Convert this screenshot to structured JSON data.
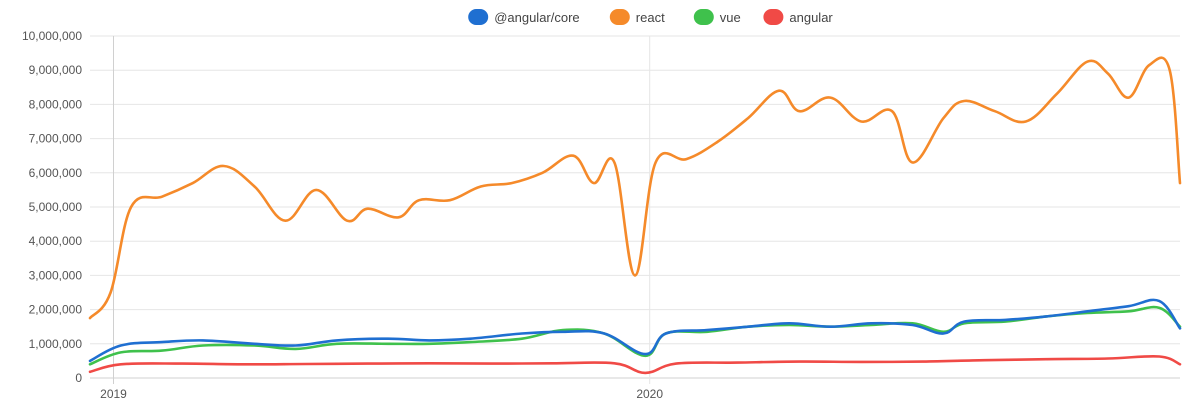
{
  "chart_data": {
    "type": "line",
    "title": "",
    "xlabel": "",
    "ylabel": "",
    "x_range": [
      "2018-12-16",
      "2020-12-27"
    ],
    "ylim": [
      0,
      10000000
    ],
    "yticks": [
      0,
      1000000,
      2000000,
      3000000,
      4000000,
      5000000,
      6000000,
      7000000,
      8000000,
      9000000,
      10000000
    ],
    "ytick_labels": [
      "0",
      "1,000,000",
      "2,000,000",
      "3,000,000",
      "4,000,000",
      "5,000,000",
      "6,000,000",
      "7,000,000",
      "8,000,000",
      "9,000,000",
      "10,000,000"
    ],
    "xticks": [
      {
        "x": "2019-01-01",
        "label": "2019"
      },
      {
        "x": "2020-01-01",
        "label": "2020"
      }
    ],
    "grid": true,
    "legend_position": "top-center",
    "series": [
      {
        "name": "@angular/core",
        "color": "#1f6fd1",
        "points": [
          [
            "2018-12-16",
            500000
          ],
          [
            "2019-01-06",
            950000
          ],
          [
            "2019-02-03",
            1050000
          ],
          [
            "2019-03-03",
            1100000
          ],
          [
            "2019-04-07",
            1000000
          ],
          [
            "2019-05-05",
            950000
          ],
          [
            "2019-06-02",
            1100000
          ],
          [
            "2019-07-07",
            1150000
          ],
          [
            "2019-08-04",
            1100000
          ],
          [
            "2019-09-01",
            1150000
          ],
          [
            "2019-10-06",
            1300000
          ],
          [
            "2019-11-03",
            1350000
          ],
          [
            "2019-12-01",
            1300000
          ],
          [
            "2019-12-29",
            700000
          ],
          [
            "2020-01-12",
            1300000
          ],
          [
            "2020-02-09",
            1400000
          ],
          [
            "2020-03-08",
            1500000
          ],
          [
            "2020-04-05",
            1600000
          ],
          [
            "2020-05-03",
            1500000
          ],
          [
            "2020-05-31",
            1600000
          ],
          [
            "2020-06-28",
            1550000
          ],
          [
            "2020-07-19",
            1300000
          ],
          [
            "2020-08-02",
            1650000
          ],
          [
            "2020-08-30",
            1700000
          ],
          [
            "2020-09-27",
            1800000
          ],
          [
            "2020-10-25",
            1950000
          ],
          [
            "2020-11-22",
            2100000
          ],
          [
            "2020-12-13",
            2250000
          ],
          [
            "2020-12-27",
            1450000
          ]
        ]
      },
      {
        "name": "react",
        "color": "#f58a2a",
        "points": [
          [
            "2018-12-16",
            1750000
          ],
          [
            "2018-12-30",
            2500000
          ],
          [
            "2019-01-13",
            5000000
          ],
          [
            "2019-02-03",
            5300000
          ],
          [
            "2019-02-24",
            5700000
          ],
          [
            "2019-03-17",
            6200000
          ],
          [
            "2019-04-07",
            5600000
          ],
          [
            "2019-04-28",
            4600000
          ],
          [
            "2019-05-19",
            5500000
          ],
          [
            "2019-06-09",
            4600000
          ],
          [
            "2019-06-23",
            4950000
          ],
          [
            "2019-07-14",
            4700000
          ],
          [
            "2019-07-28",
            5200000
          ],
          [
            "2019-08-18",
            5200000
          ],
          [
            "2019-09-08",
            5600000
          ],
          [
            "2019-09-29",
            5700000
          ],
          [
            "2019-10-20",
            6000000
          ],
          [
            "2019-11-10",
            6500000
          ],
          [
            "2019-11-24",
            5700000
          ],
          [
            "2019-12-08",
            6300000
          ],
          [
            "2019-12-22",
            3000000
          ],
          [
            "2020-01-05",
            6300000
          ],
          [
            "2020-01-26",
            6400000
          ],
          [
            "2020-02-16",
            6900000
          ],
          [
            "2020-03-08",
            7600000
          ],
          [
            "2020-03-29",
            8400000
          ],
          [
            "2020-04-12",
            7800000
          ],
          [
            "2020-05-03",
            8200000
          ],
          [
            "2020-05-24",
            7500000
          ],
          [
            "2020-06-14",
            7800000
          ],
          [
            "2020-06-28",
            6300000
          ],
          [
            "2020-07-19",
            7600000
          ],
          [
            "2020-08-02",
            8100000
          ],
          [
            "2020-08-23",
            7800000
          ],
          [
            "2020-09-13",
            7500000
          ],
          [
            "2020-10-04",
            8300000
          ],
          [
            "2020-10-25",
            9250000
          ],
          [
            "2020-11-08",
            8900000
          ],
          [
            "2020-11-22",
            8200000
          ],
          [
            "2020-12-06",
            9150000
          ],
          [
            "2020-12-20",
            9000000
          ],
          [
            "2020-12-27",
            5700000
          ]
        ]
      },
      {
        "name": "vue",
        "color": "#3fc14c",
        "points": [
          [
            "2018-12-16",
            400000
          ],
          [
            "2019-01-06",
            750000
          ],
          [
            "2019-02-03",
            800000
          ],
          [
            "2019-03-03",
            950000
          ],
          [
            "2019-04-07",
            950000
          ],
          [
            "2019-05-05",
            850000
          ],
          [
            "2019-06-02",
            1000000
          ],
          [
            "2019-07-07",
            1000000
          ],
          [
            "2019-08-04",
            1000000
          ],
          [
            "2019-09-01",
            1050000
          ],
          [
            "2019-10-06",
            1150000
          ],
          [
            "2019-11-03",
            1400000
          ],
          [
            "2019-12-01",
            1300000
          ],
          [
            "2019-12-29",
            650000
          ],
          [
            "2020-01-12",
            1300000
          ],
          [
            "2020-02-09",
            1350000
          ],
          [
            "2020-03-08",
            1500000
          ],
          [
            "2020-04-05",
            1550000
          ],
          [
            "2020-05-03",
            1500000
          ],
          [
            "2020-05-31",
            1550000
          ],
          [
            "2020-06-28",
            1600000
          ],
          [
            "2020-07-19",
            1350000
          ],
          [
            "2020-08-02",
            1600000
          ],
          [
            "2020-08-30",
            1650000
          ],
          [
            "2020-09-27",
            1800000
          ],
          [
            "2020-10-25",
            1900000
          ],
          [
            "2020-11-22",
            1950000
          ],
          [
            "2020-12-13",
            2050000
          ],
          [
            "2020-12-27",
            1500000
          ]
        ]
      },
      {
        "name": "angular",
        "color": "#f04a46",
        "points": [
          [
            "2018-12-16",
            180000
          ],
          [
            "2019-01-06",
            400000
          ],
          [
            "2019-02-17",
            420000
          ],
          [
            "2019-03-31",
            400000
          ],
          [
            "2019-05-12",
            410000
          ],
          [
            "2019-06-23",
            420000
          ],
          [
            "2019-08-04",
            430000
          ],
          [
            "2019-09-15",
            420000
          ],
          [
            "2019-10-27",
            430000
          ],
          [
            "2019-12-08",
            430000
          ],
          [
            "2019-12-29",
            150000
          ],
          [
            "2020-01-19",
            420000
          ],
          [
            "2020-03-01",
            450000
          ],
          [
            "2020-04-12",
            480000
          ],
          [
            "2020-05-24",
            470000
          ],
          [
            "2020-07-05",
            480000
          ],
          [
            "2020-08-16",
            520000
          ],
          [
            "2020-09-27",
            550000
          ],
          [
            "2020-11-08",
            570000
          ],
          [
            "2020-12-13",
            630000
          ],
          [
            "2020-12-27",
            400000
          ]
        ]
      }
    ]
  }
}
